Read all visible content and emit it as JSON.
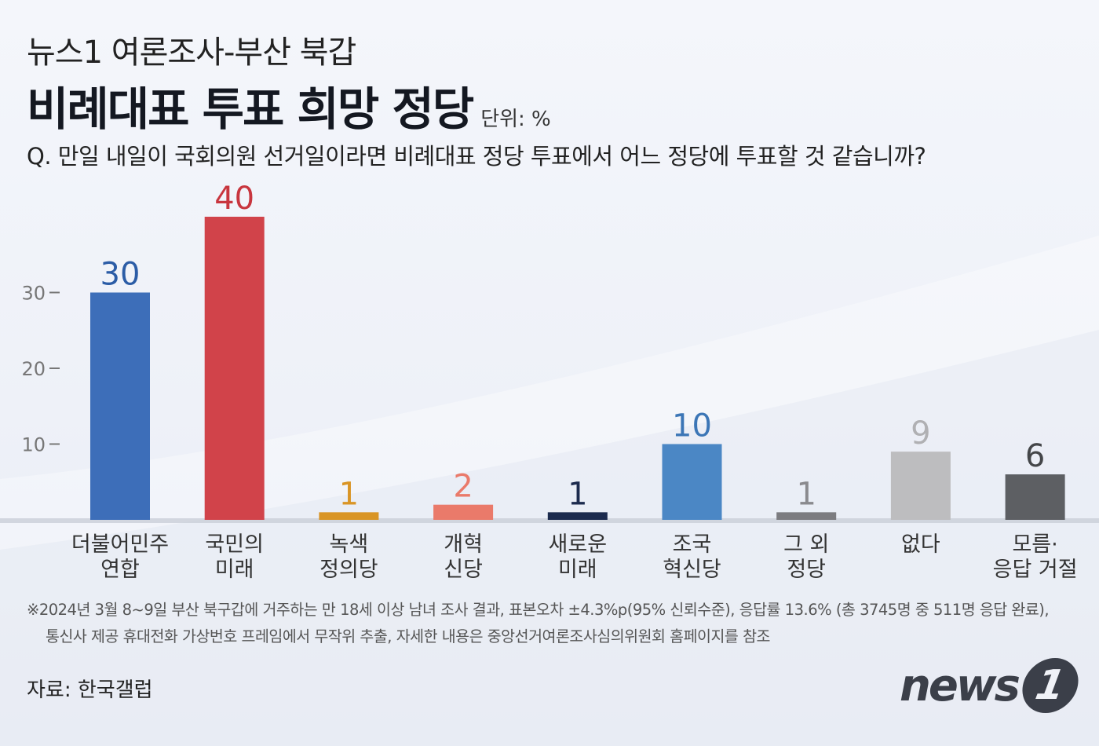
{
  "header": {
    "subtitle": "뉴스1 여론조사-부산 북갑",
    "title": "비례대표 투표 희망 정당",
    "unit": "단위: %",
    "question": "Q. 만일 내일이 국회의원 선거일이라면 비례대표 정당 투표에서 어느 정당에 투표할 것 같습니까?"
  },
  "chart_data": {
    "type": "bar",
    "categories": [
      [
        "더불어민주",
        "연합"
      ],
      [
        "국민의",
        "미래"
      ],
      [
        "녹색",
        "정의당"
      ],
      [
        "개혁",
        "신당"
      ],
      [
        "새로운",
        "미래"
      ],
      [
        "조국",
        "혁신당"
      ],
      [
        "그 외",
        "정당"
      ],
      [
        "없다"
      ],
      [
        "모름·",
        "응답 거절"
      ]
    ],
    "values": [
      30,
      40,
      1,
      2,
      1,
      10,
      1,
      9,
      6
    ],
    "bar_colors": [
      "#3d6eb9",
      "#d1434a",
      "#d99526",
      "#ea7a6a",
      "#1c2b4e",
      "#4b87c5",
      "#7c7c80",
      "#bdbdbf",
      "#5d5f63"
    ],
    "label_colors": [
      "#2b5ca6",
      "#c8353e",
      "#d99526",
      "#ea7a6a",
      "#1c2b4e",
      "#3c76b6",
      "#8a8a8e",
      "#b0b0b3",
      "#444649"
    ],
    "yticks": [
      10,
      20,
      30
    ],
    "ylim": [
      0,
      40
    ],
    "title": "비례대표 투표 희망 정당",
    "grid": false
  },
  "footer": {
    "note_line1": "※2024년 3월 8~9일 부산 북구갑에 거주하는 만 18세 이상 남녀 조사 결과, 표본오차 ±4.3%p(95% 신뢰수준), 응답률 13.6% (총 3745명 중 511명 응답 완료),",
    "note_line2": "통신사 제공 휴대전화 가상번호 프레임에서 무작위 추출, 자세한 내용은 중앙선거여론조사심의위원회 홈페이지를 참조",
    "source": "자료: 한국갤럽",
    "logo_text": "news",
    "logo_digit": "1"
  }
}
